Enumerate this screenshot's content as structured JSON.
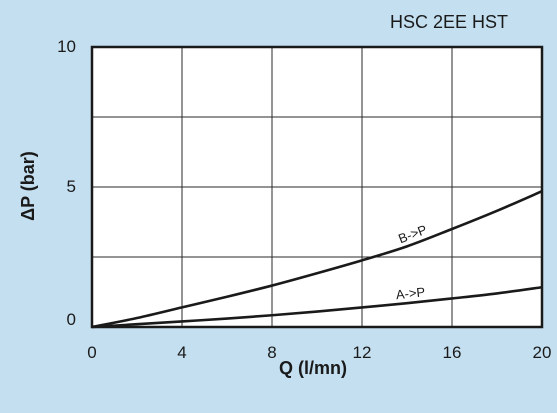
{
  "chart_data": {
    "type": "line",
    "title": "HSC 2EE HST",
    "xlabel": "Q (l/mn)",
    "ylabel": "ΔP (bar)",
    "xlim": [
      0,
      20
    ],
    "ylim": [
      0,
      10
    ],
    "x_ticks": [
      "0",
      "4",
      "8",
      "12",
      "16",
      "20"
    ],
    "y_ticks": [
      "0",
      "5",
      "10"
    ],
    "grid": true,
    "series": [
      {
        "name": "B->P",
        "x": [
          0,
          2,
          4,
          6,
          8,
          10,
          12,
          14,
          16,
          18,
          20
        ],
        "y": [
          0,
          0.32,
          0.7,
          1.08,
          1.48,
          1.92,
          2.38,
          2.88,
          3.5,
          4.15,
          4.85
        ]
      },
      {
        "name": "A->P",
        "x": [
          0,
          2,
          4,
          6,
          8,
          10,
          12,
          14,
          16,
          18,
          20
        ],
        "y": [
          0,
          0.1,
          0.2,
          0.3,
          0.42,
          0.55,
          0.7,
          0.85,
          1.02,
          1.2,
          1.42
        ]
      }
    ]
  },
  "colors": {
    "background": "#c4dff0",
    "plot_background": "#ffffff",
    "line": "#1a1a1a"
  }
}
